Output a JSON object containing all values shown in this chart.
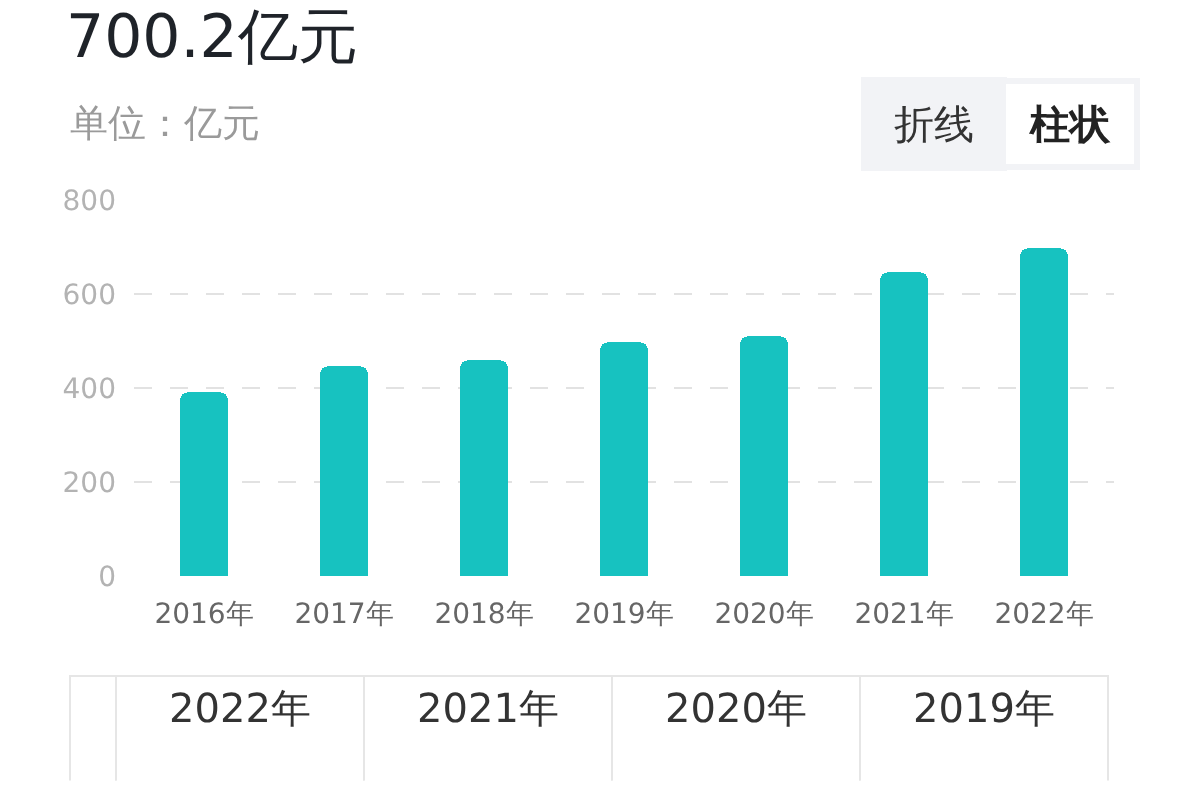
{
  "chart_data": {
    "type": "bar",
    "title": "700.2亿元",
    "subtitle": "单位：亿元",
    "categories": [
      "2016年",
      "2017年",
      "2018年",
      "2019年",
      "2020年",
      "2021年",
      "2022年"
    ],
    "values": [
      393,
      447,
      460,
      500,
      510,
      648,
      700
    ],
    "color": "#17c2c0",
    "ylim": [
      0,
      800
    ],
    "yticks": [
      0,
      200,
      400,
      600,
      800
    ],
    "grid": "y",
    "annotations": [
      "折线",
      "柱状",
      "2022年",
      "2021年",
      "2020年",
      "2019年"
    ]
  }
}
